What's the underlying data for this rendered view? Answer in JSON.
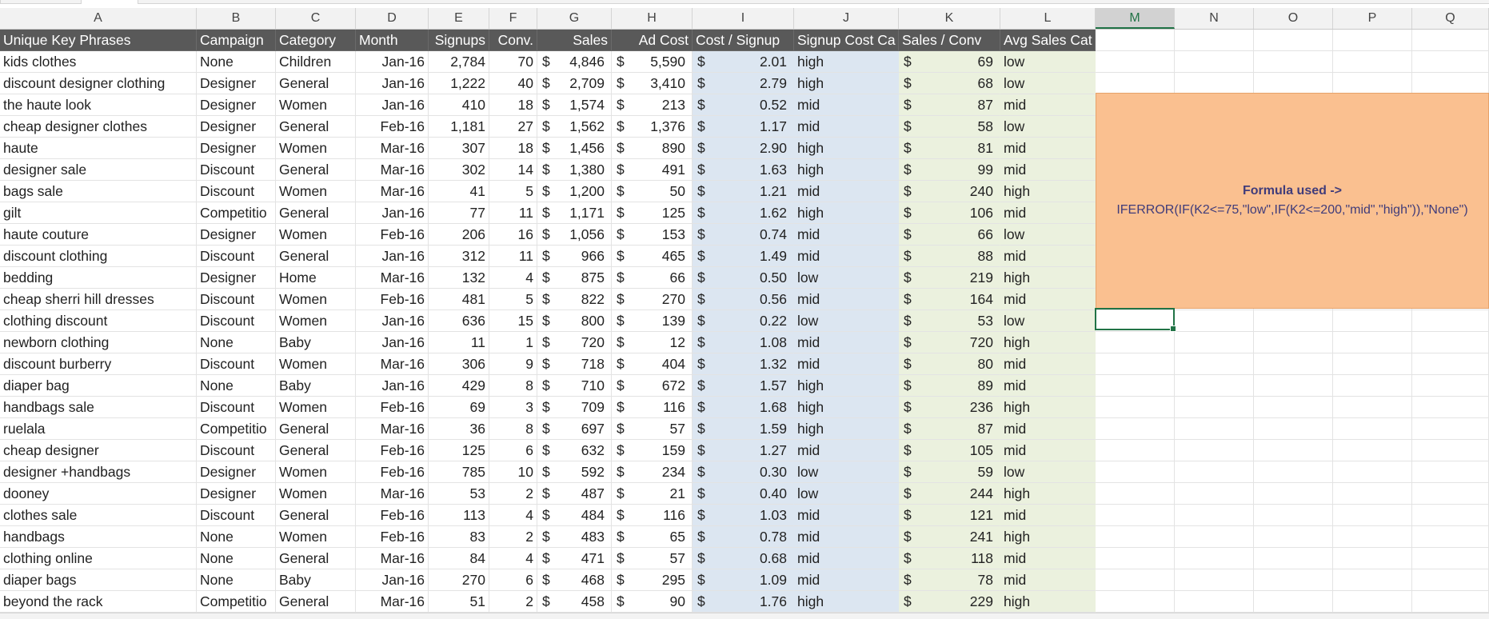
{
  "column_letters": [
    "A",
    "B",
    "C",
    "D",
    "E",
    "F",
    "G",
    "H",
    "I",
    "J",
    "K",
    "L",
    "M",
    "N",
    "O",
    "P",
    "Q"
  ],
  "active_column": "M",
  "headers": [
    "Unique Key Phrases",
    "Campaign",
    "Category",
    "Month",
    "Signups",
    "Conv.",
    "Sales",
    "Ad Cost",
    "Cost / Signup",
    "Signup Cost Ca",
    "Sales / Conv",
    "Avg Sales Cat"
  ],
  "currency_symbol": "$",
  "rows": [
    [
      "kids clothes",
      "None",
      "Children",
      "Jan-16",
      "2,784",
      "70",
      "4,846",
      "5,590",
      "2.01",
      "high",
      "69",
      "low"
    ],
    [
      "discount designer clothing",
      "Designer",
      "General",
      "Jan-16",
      "1,222",
      "40",
      "2,709",
      "3,410",
      "2.79",
      "high",
      "68",
      "low"
    ],
    [
      "the haute look",
      "Designer",
      "Women",
      "Jan-16",
      "410",
      "18",
      "1,574",
      "213",
      "0.52",
      "mid",
      "87",
      "mid"
    ],
    [
      "cheap designer clothes",
      "Designer",
      "General",
      "Feb-16",
      "1,181",
      "27",
      "1,562",
      "1,376",
      "1.17",
      "mid",
      "58",
      "low"
    ],
    [
      "haute",
      "Designer",
      "Women",
      "Mar-16",
      "307",
      "18",
      "1,456",
      "890",
      "2.90",
      "high",
      "81",
      "mid"
    ],
    [
      "designer sale",
      "Discount",
      "General",
      "Mar-16",
      "302",
      "14",
      "1,380",
      "491",
      "1.63",
      "high",
      "99",
      "mid"
    ],
    [
      "bags sale",
      "Discount",
      "Women",
      "Mar-16",
      "41",
      "5",
      "1,200",
      "50",
      "1.21",
      "mid",
      "240",
      "high"
    ],
    [
      "gilt",
      "Competitio",
      "General",
      "Jan-16",
      "77",
      "11",
      "1,171",
      "125",
      "1.62",
      "high",
      "106",
      "mid"
    ],
    [
      "haute couture",
      "Designer",
      "Women",
      "Feb-16",
      "206",
      "16",
      "1,056",
      "153",
      "0.74",
      "mid",
      "66",
      "low"
    ],
    [
      "discount clothing",
      "Discount",
      "General",
      "Jan-16",
      "312",
      "11",
      "966",
      "465",
      "1.49",
      "mid",
      "88",
      "mid"
    ],
    [
      "bedding",
      "Designer",
      "Home",
      "Mar-16",
      "132",
      "4",
      "875",
      "66",
      "0.50",
      "low",
      "219",
      "high"
    ],
    [
      "cheap sherri hill dresses",
      "Discount",
      "Women",
      "Feb-16",
      "481",
      "5",
      "822",
      "270",
      "0.56",
      "mid",
      "164",
      "mid"
    ],
    [
      "clothing discount",
      "Discount",
      "Women",
      "Jan-16",
      "636",
      "15",
      "800",
      "139",
      "0.22",
      "low",
      "53",
      "low"
    ],
    [
      "newborn clothing",
      "None",
      "Baby",
      "Jan-16",
      "11",
      "1",
      "720",
      "12",
      "1.08",
      "mid",
      "720",
      "high"
    ],
    [
      "discount burberry",
      "Discount",
      "Women",
      "Mar-16",
      "306",
      "9",
      "718",
      "404",
      "1.32",
      "mid",
      "80",
      "mid"
    ],
    [
      "diaper bag",
      "None",
      "Baby",
      "Jan-16",
      "429",
      "8",
      "710",
      "672",
      "1.57",
      "high",
      "89",
      "mid"
    ],
    [
      "handbags sale",
      "Discount",
      "Women",
      "Feb-16",
      "69",
      "3",
      "709",
      "116",
      "1.68",
      "high",
      "236",
      "high"
    ],
    [
      "ruelala",
      "Competitio",
      "General",
      "Mar-16",
      "36",
      "8",
      "697",
      "57",
      "1.59",
      "high",
      "87",
      "mid"
    ],
    [
      "cheap designer",
      "Discount",
      "General",
      "Feb-16",
      "125",
      "6",
      "632",
      "159",
      "1.27",
      "mid",
      "105",
      "mid"
    ],
    [
      "designer +handbags",
      "Designer",
      "Women",
      "Feb-16",
      "785",
      "10",
      "592",
      "234",
      "0.30",
      "low",
      "59",
      "low"
    ],
    [
      "dooney",
      "Designer",
      "Women",
      "Mar-16",
      "53",
      "2",
      "487",
      "21",
      "0.40",
      "low",
      "244",
      "high"
    ],
    [
      "clothes sale",
      "Discount",
      "General",
      "Feb-16",
      "113",
      "4",
      "484",
      "116",
      "1.03",
      "mid",
      "121",
      "mid"
    ],
    [
      "handbags",
      "None",
      "Women",
      "Feb-16",
      "83",
      "2",
      "483",
      "65",
      "0.78",
      "mid",
      "241",
      "high"
    ],
    [
      "clothing online",
      "None",
      "General",
      "Mar-16",
      "84",
      "4",
      "471",
      "57",
      "0.68",
      "mid",
      "118",
      "mid"
    ],
    [
      "diaper bags",
      "None",
      "Baby",
      "Jan-16",
      "270",
      "6",
      "468",
      "295",
      "1.09",
      "mid",
      "78",
      "mid"
    ],
    [
      "beyond the rack",
      "Competitio",
      "General",
      "Mar-16",
      "51",
      "2",
      "458",
      "90",
      "1.76",
      "high",
      "229",
      "high"
    ]
  ],
  "note": {
    "title": "Formula used ->",
    "formula": "IFERROR(IF(K2<=75,\"low\",IF(K2<=200,\"mid\",\"high\")),\"None\")"
  }
}
